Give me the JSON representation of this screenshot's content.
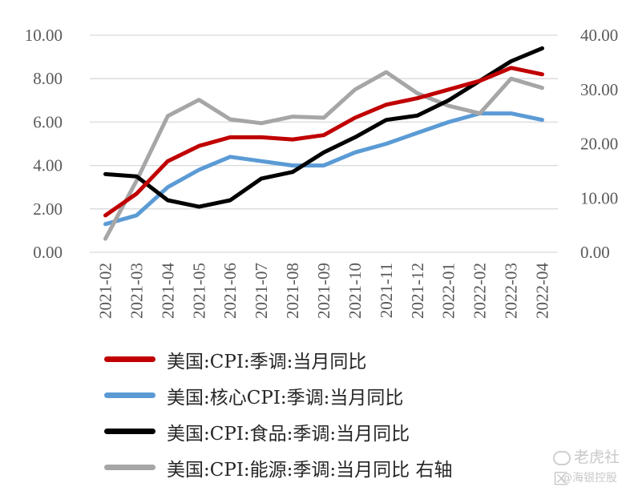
{
  "chart_data": {
    "type": "line",
    "categories": [
      "2021-02",
      "2021-03",
      "2021-04",
      "2021-05",
      "2021-06",
      "2021-07",
      "2021-08",
      "2021-09",
      "2021-10",
      "2021-11",
      "2021-12",
      "2022-01",
      "2022-02",
      "2022-03",
      "2022-04"
    ],
    "y_left": {
      "ylim": [
        0,
        10
      ],
      "ticks": [
        "0.00",
        "2.00",
        "4.00",
        "6.00",
        "8.00",
        "10.00"
      ]
    },
    "y_right": {
      "ylim": [
        0,
        40
      ],
      "ticks": [
        "0.00",
        "10.00",
        "20.00",
        "30.00",
        "40.00"
      ]
    },
    "grid": true,
    "legend_position": "bottom",
    "series": [
      {
        "name": "美国:CPI:季调:当月同比",
        "axis": "left",
        "color": "#c00000",
        "values": [
          1.7,
          2.7,
          4.2,
          4.9,
          5.3,
          5.3,
          5.2,
          5.4,
          6.2,
          6.8,
          7.1,
          7.5,
          7.9,
          8.5,
          8.2
        ]
      },
      {
        "name": "美国:核心CPI:季调:当月同比",
        "axis": "left",
        "color": "#5b9bd5",
        "values": [
          1.3,
          1.7,
          3.0,
          3.8,
          4.4,
          4.2,
          4.0,
          4.0,
          4.6,
          5.0,
          5.5,
          6.0,
          6.4,
          6.4,
          6.1
        ]
      },
      {
        "name": "美国:CPI:食品:季调:当月同比",
        "axis": "left",
        "color": "#000000",
        "values": [
          3.6,
          3.5,
          2.4,
          2.1,
          2.4,
          3.4,
          3.7,
          4.6,
          5.3,
          6.1,
          6.3,
          7.0,
          7.9,
          8.8,
          9.4
        ]
      },
      {
        "name": "美国:CPI:能源:季调:当月同比 右轴",
        "axis": "right",
        "color": "#a6a6a6",
        "values": [
          2.5,
          13.2,
          25.1,
          28.1,
          24.5,
          23.8,
          25.0,
          24.8,
          30.0,
          33.2,
          29.3,
          27.0,
          25.6,
          32.0,
          30.3
        ]
      }
    ]
  },
  "watermark": {
    "line1": "老虎社区",
    "line2": "@海银控股"
  }
}
